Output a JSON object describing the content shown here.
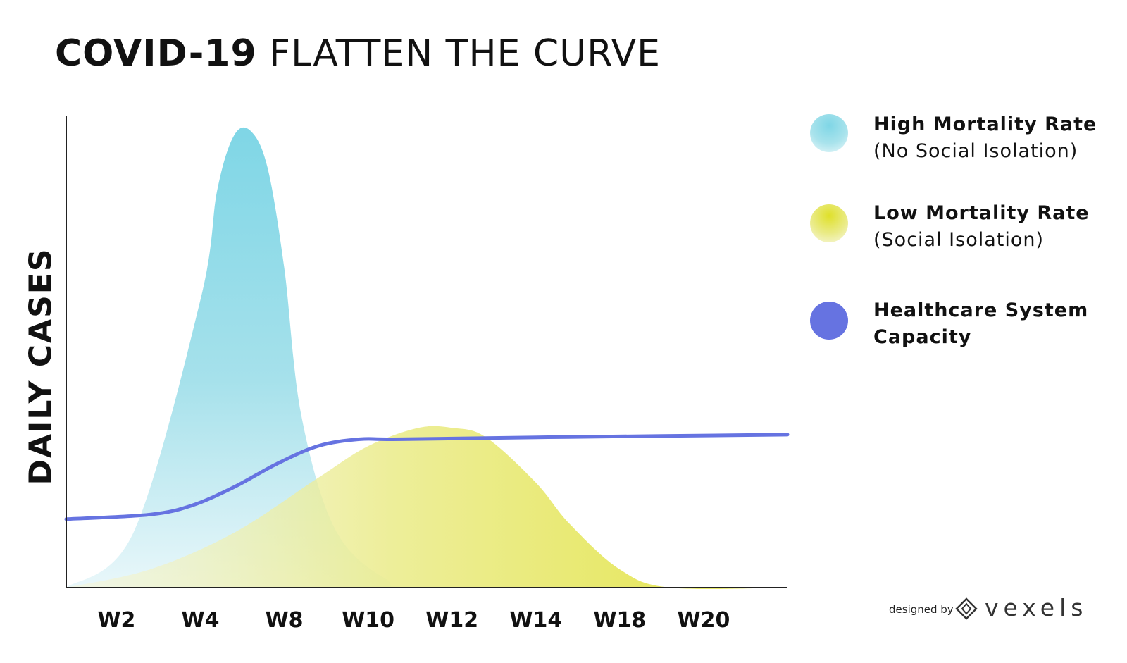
{
  "title": {
    "bold": "COVID-19",
    "light": "FLATTEN THE CURVE"
  },
  "chart_data": {
    "type": "area",
    "ylabel": "DAILY CASES",
    "categories": [
      "W2",
      "W4",
      "W8",
      "W10",
      "W12",
      "W14",
      "W18",
      "W20"
    ],
    "grid": false,
    "legend_position": "right",
    "ylim": [
      0,
      100
    ],
    "series": [
      {
        "name": "High Mortality Rate",
        "color": "#7fd6e6",
        "x": [
          0,
          0.8,
          1.6,
          1.8,
          2.0,
          2.2,
          2.4,
          2.6,
          2.8,
          3.2,
          3.8,
          4.4,
          8.6
        ],
        "values": [
          0,
          12,
          63,
          87,
          99,
          100,
          92,
          70,
          38,
          13,
          2,
          0,
          0
        ]
      },
      {
        "name": "Low Mortality Rate",
        "color": "#e2e23a",
        "x": [
          0,
          1.0,
          2.0,
          3.0,
          3.6,
          4.2,
          4.6,
          5.0,
          5.6,
          6.0,
          6.6,
          7.2,
          8.6
        ],
        "values": [
          0,
          4,
          12,
          24,
          31,
          35,
          35,
          33,
          23,
          14,
          4,
          0,
          0
        ]
      },
      {
        "name": "Healthcare System Capacity",
        "color": "#6673e1",
        "x": [
          0,
          1.0,
          1.5,
          2.0,
          2.5,
          3.0,
          3.5,
          4.0,
          6.0,
          8.6
        ],
        "values": [
          15,
          16,
          18,
          22,
          27,
          31,
          32.5,
          32.5,
          33,
          33.5
        ]
      }
    ]
  },
  "legend": [
    {
      "name": "High Mortality Rate",
      "subtitle": "(No Social Isolation)",
      "color": "#7fd6e6"
    },
    {
      "name": "Low Mortality Rate",
      "subtitle": "(Social Isolation)",
      "color": "#e2e23a"
    },
    {
      "name": "Healthcare System",
      "name_line2": "Capacity",
      "color": "#6673e1"
    }
  ],
  "branding": {
    "credit": "designed by",
    "name": "vexels",
    "icon": "diamond-logo-icon"
  }
}
